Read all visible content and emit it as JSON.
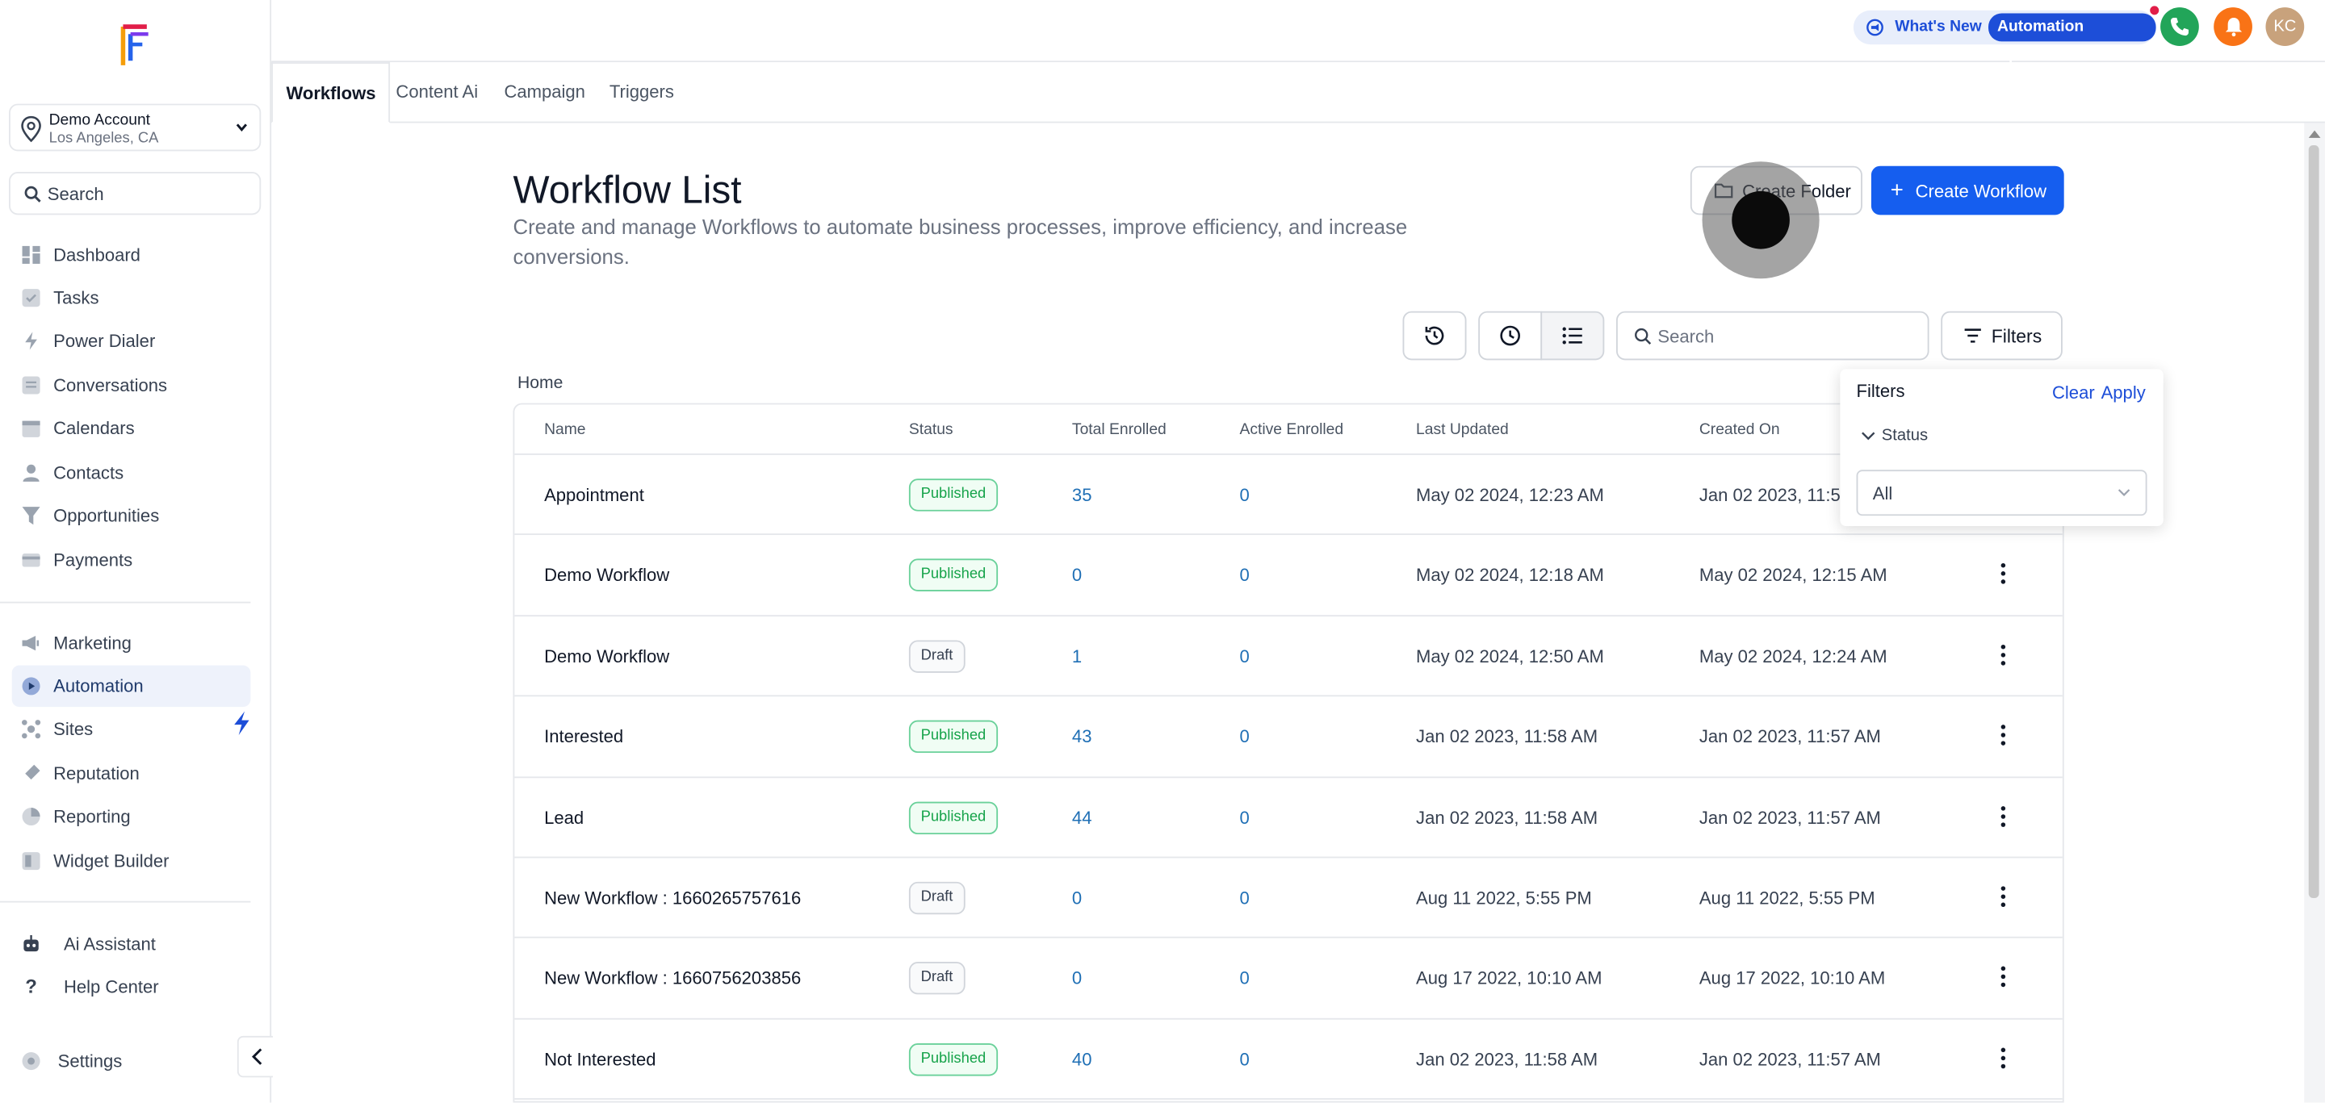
{
  "account": {
    "name": "Demo Account",
    "location": "Los Angeles, CA"
  },
  "sidebar": {
    "search_placeholder": "Search",
    "items": [
      {
        "label": "Dashboard",
        "icon": "dashboard-icon"
      },
      {
        "label": "Tasks",
        "icon": "tasks-icon"
      },
      {
        "label": "Power Dialer",
        "icon": "power-dialer-icon"
      },
      {
        "label": "Conversations",
        "icon": "conversations-icon"
      },
      {
        "label": "Calendars",
        "icon": "calendar-icon"
      },
      {
        "label": "Contacts",
        "icon": "contacts-icon"
      },
      {
        "label": "Opportunities",
        "icon": "opportunities-icon"
      },
      {
        "label": "Payments",
        "icon": "payments-icon"
      },
      {
        "label": "Marketing",
        "icon": "marketing-icon"
      },
      {
        "label": "Automation",
        "icon": "automation-icon",
        "active": true
      },
      {
        "label": "Sites",
        "icon": "sites-icon"
      },
      {
        "label": "Reputation",
        "icon": "reputation-icon"
      },
      {
        "label": "Reporting",
        "icon": "reporting-icon"
      },
      {
        "label": "Widget Builder",
        "icon": "widget-builder-icon"
      },
      {
        "label": "Ai Assistant",
        "icon": "ai-assistant-icon"
      },
      {
        "label": "Help Center",
        "icon": "help-icon"
      },
      {
        "label": "Settings",
        "icon": "settings-icon"
      }
    ]
  },
  "header": {
    "whats_new": "What's New",
    "automation_updates": "Automation Updates",
    "avatar_initials": "KC"
  },
  "tabs": [
    "Workflows",
    "Content Ai",
    "Campaign",
    "Triggers"
  ],
  "page": {
    "title": "Workflow List",
    "description": "Create and manage Workflows to automate business processes, improve efficiency, and increase conversions.",
    "create_folder": "Create Folder",
    "create_workflow": "Create Workflow",
    "search_placeholder": "Search",
    "filters_label": "Filters",
    "breadcrumb": "Home"
  },
  "table": {
    "columns": [
      "Name",
      "Status",
      "Total Enrolled",
      "Active Enrolled",
      "Last Updated",
      "Created On"
    ],
    "rows": [
      {
        "name": "Appointment",
        "status": "Published",
        "total": "35",
        "active": "0",
        "updated": "May 02 2024, 12:23 AM",
        "created": "Jan 02 2023, 11:5"
      },
      {
        "name": "Demo Workflow",
        "status": "Published",
        "total": "0",
        "active": "0",
        "updated": "May 02 2024, 12:18 AM",
        "created": "May 02 2024, 12:15 AM"
      },
      {
        "name": "Demo Workflow",
        "status": "Draft",
        "total": "1",
        "active": "0",
        "updated": "May 02 2024, 12:50 AM",
        "created": "May 02 2024, 12:24 AM"
      },
      {
        "name": "Interested",
        "status": "Published",
        "total": "43",
        "active": "0",
        "updated": "Jan 02 2023, 11:58 AM",
        "created": "Jan 02 2023, 11:57 AM"
      },
      {
        "name": "Lead",
        "status": "Published",
        "total": "44",
        "active": "0",
        "updated": "Jan 02 2023, 11:58 AM",
        "created": "Jan 02 2023, 11:57 AM"
      },
      {
        "name": "New Workflow : 1660265757616",
        "status": "Draft",
        "total": "0",
        "active": "0",
        "updated": "Aug 11 2022, 5:55 PM",
        "created": "Aug 11 2022, 5:55 PM"
      },
      {
        "name": "New Workflow : 1660756203856",
        "status": "Draft",
        "total": "0",
        "active": "0",
        "updated": "Aug 17 2022, 10:10 AM",
        "created": "Aug 17 2022, 10:10 AM"
      },
      {
        "name": "Not Interested",
        "status": "Published",
        "total": "40",
        "active": "0",
        "updated": "Jan 02 2023, 11:58 AM",
        "created": "Jan 02 2023, 11:57 AM"
      }
    ]
  },
  "filters_popup": {
    "title": "Filters",
    "clear": "Clear",
    "apply": "Apply",
    "section": "Status",
    "selected": "All"
  },
  "colors": {
    "primary": "#155eef",
    "published": "#16a34a",
    "link": "#1f6fb5",
    "phone": "#22a559",
    "bell": "#f97316",
    "avatar": "#c8a27c"
  }
}
